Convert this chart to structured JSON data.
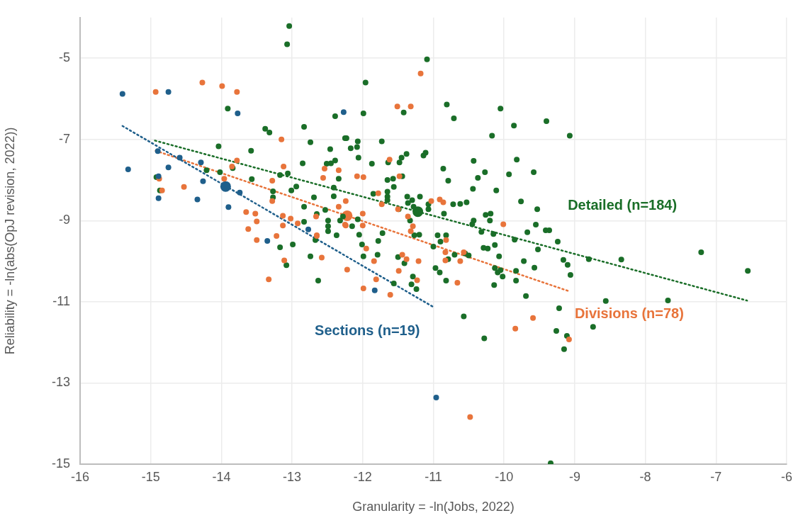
{
  "chart_data": {
    "type": "scatter",
    "xlabel": "Granularity = -ln(Jobs, 2022)",
    "ylabel": "Reliability = -ln(abs(OpJ revision, 2022))",
    "xlim": [
      -16,
      -6
    ],
    "xticks": [
      -16,
      -15,
      -14,
      -13,
      -12,
      -11,
      -10,
      -9,
      -8,
      -7,
      -6
    ],
    "ylim": [
      -15,
      -4
    ],
    "yticks": [
      -5,
      -7,
      -9,
      -11,
      -13,
      -15
    ],
    "grid": true,
    "legend": false,
    "marker": "circle",
    "series": [
      {
        "type": "scatter",
        "name": "Sections (n=19)",
        "color": "#1f5f8b",
        "x": [
          -15.4,
          -15.32,
          -14.75,
          -13.77,
          -12.27,
          -14.9,
          -14.59,
          -14.29,
          -14.75,
          -14.89,
          -14.26,
          -13.74,
          -14.89,
          -14.34,
          -13.9,
          -12.77,
          -13.35,
          -11.83,
          -10.96
        ],
        "values": [
          -5.88,
          -7.74,
          -5.83,
          -6.36,
          -6.33,
          -7.29,
          -7.45,
          -7.57,
          -7.69,
          -7.91,
          -8.03,
          -8.31,
          -8.45,
          -8.48,
          -8.67,
          -9.22,
          -9.5,
          -10.72,
          -13.36
        ]
      },
      {
        "type": "scatter",
        "name": "Divisions (n=78)",
        "color": "#e8743b",
        "x": [
          -14.93,
          -14.27,
          -13.99,
          -13.78,
          -13.15,
          -13.78,
          -13.85,
          -14.88,
          -14.84,
          -14.53,
          -13.96,
          -13.12,
          -13.28,
          -13.28,
          -13.65,
          -13.52,
          -13.5,
          -13.62,
          -13.13,
          -13.02,
          -13.13,
          -12.92,
          -12.66,
          -12.65,
          -12.54,
          -12.56,
          -12.34,
          -12.34,
          -12.25,
          -13.5,
          -13.22,
          -12.65,
          -13.11,
          -12.58,
          -13.33,
          -11.18,
          -11.51,
          -11.32,
          -11.62,
          -12.08,
          -11.99,
          -11.78,
          -11.73,
          -12.24,
          -12.0,
          -12.0,
          -12.24,
          -11.5,
          -11.36,
          -11.03,
          -10.91,
          -10.86,
          -11.29,
          -11.32,
          -11.48,
          -10.01,
          -11.95,
          -12.22,
          -11.84,
          -11.44,
          -11.38,
          -11.21,
          -11.49,
          -11.81,
          -11.23,
          -11.99,
          -11.61,
          -10.82,
          -10.83,
          -10.83,
          -10.62,
          -10.66,
          -10.57,
          -9.84,
          -9.59,
          -9.08,
          -10.48
        ],
        "values": [
          -5.83,
          -5.6,
          -5.69,
          -5.83,
          -7.0,
          -7.52,
          -7.67,
          -7.97,
          -8.26,
          -8.17,
          -7.97,
          -7.67,
          -8.02,
          -8.52,
          -8.79,
          -8.83,
          -9.02,
          -9.21,
          -8.88,
          -8.95,
          -9.12,
          -9.07,
          -8.9,
          -9.36,
          -7.72,
          -7.95,
          -7.76,
          -8.66,
          -9.1,
          -9.48,
          -9.38,
          -9.38,
          -9.98,
          -9.91,
          -10.45,
          -5.38,
          -6.19,
          -6.19,
          -7.5,
          -7.91,
          -7.93,
          -8.33,
          -8.6,
          -8.52,
          -8.83,
          -9.12,
          -9.12,
          -8.72,
          -8.9,
          -8.52,
          -8.48,
          -8.55,
          -9.14,
          -9.26,
          -7.91,
          -9.09,
          -9.69,
          -10.21,
          -10.0,
          -9.84,
          -9.95,
          -10.0,
          -10.24,
          -10.45,
          -10.47,
          -10.67,
          -10.83,
          -9.48,
          -9.78,
          -9.98,
          -10.0,
          -10.53,
          -9.78,
          -11.66,
          -11.4,
          -11.93,
          -13.84
        ]
      },
      {
        "type": "scatter",
        "name": "Detailed (n=184)",
        "color": "#1a6e28",
        "x": [
          -13.04,
          -13.07,
          -13.91,
          -13.38,
          -13.32,
          -12.83,
          -12.74,
          -12.39,
          -12.46,
          -12.25,
          -14.04,
          -13.58,
          -12.85,
          -12.51,
          -12.45,
          -12.39,
          -14.21,
          -14.02,
          -13.84,
          -14.92,
          -14.87,
          -13.57,
          -13.17,
          -13.06,
          -12.34,
          -12.41,
          -12.94,
          -13.01,
          -13.27,
          -13.27,
          -12.69,
          -12.41,
          -12.83,
          -12.53,
          -12.65,
          -12.28,
          -12.32,
          -12.49,
          -12.49,
          -12.49,
          -12.83,
          -12.37,
          -12.67,
          -13.17,
          -12.99,
          -12.74,
          -13.08,
          -12.63,
          -11.09,
          -11.96,
          -11.99,
          -11.42,
          -10.81,
          -10.71,
          -10.05,
          -9.86,
          -9.4,
          -10.17,
          -9.07,
          -12.23,
          -12.07,
          -12.17,
          -12.08,
          -11.73,
          -12.06,
          -11.87,
          -11.64,
          -11.45,
          -11.48,
          -11.38,
          -11.14,
          -11.11,
          -10.43,
          -10.27,
          -10.37,
          -10.86,
          -10.79,
          -9.82,
          -9.93,
          -9.58,
          -11.65,
          -11.57,
          -11.44,
          -11.56,
          -11.65,
          -11.85,
          -10.44,
          -10.11,
          -9.76,
          -9.53,
          -11.65,
          -11.65,
          -11.37,
          -11.3,
          -11.19,
          -11.36,
          -11.28,
          -11.07,
          -11.07,
          -11.49,
          -10.72,
          -10.62,
          -10.53,
          -10.85,
          -11.33,
          -10.26,
          -10.19,
          -10.2,
          -10.43,
          -10.45,
          -9.55,
          -9.67,
          -9.41,
          -9.36,
          -10.32,
          -10.15,
          -12.07,
          -12.15,
          -11.72,
          -12.05,
          -11.2,
          -11.27,
          -10.94,
          -10.82,
          -12.01,
          -11.99,
          -11.78,
          -11.79,
          -11.5,
          -11.41,
          -11.56,
          -11.29,
          -11.31,
          -11.24,
          -11.0,
          -10.9,
          -10.79,
          -10.7,
          -10.97,
          -10.91,
          -10.82,
          -10.55,
          -10.5,
          -10.57,
          -10.28,
          -10.29,
          -10.23,
          -10.13,
          -10.07,
          -10.13,
          -10.09,
          -10.05,
          -10.02,
          -10.14,
          -9.85,
          -9.83,
          -9.83,
          -9.72,
          -9.57,
          -9.69,
          -9.52,
          -9.24,
          -9.16,
          -9.1,
          -9.06,
          -9.22,
          -9.26,
          -9.11,
          -9.15,
          -8.8,
          -8.74,
          -9.34,
          -8.56,
          -8.34,
          -7.21,
          -6.55,
          -7.68
        ],
        "values": [
          -4.21,
          -4.66,
          -6.24,
          -6.74,
          -6.83,
          -6.69,
          -7.07,
          -6.43,
          -7.24,
          -6.97,
          -7.17,
          -7.28,
          -7.59,
          -7.6,
          -7.59,
          -7.52,
          -7.76,
          -7.81,
          -7.71,
          -7.93,
          -8.26,
          -7.98,
          -7.88,
          -7.84,
          -7.97,
          -8.19,
          -8.16,
          -8.26,
          -8.28,
          -8.43,
          -8.43,
          -8.4,
          -8.66,
          -8.74,
          -8.84,
          -8.9,
          -9.0,
          -9.0,
          -9.14,
          -9.26,
          -9.03,
          -9.36,
          -9.48,
          -9.66,
          -9.59,
          -9.88,
          -10.1,
          -10.48,
          -5.03,
          -5.6,
          -6.36,
          -6.34,
          -6.14,
          -6.48,
          -6.24,
          -6.66,
          -6.55,
          -6.91,
          -6.91,
          -6.97,
          -7.05,
          -7.22,
          -7.19,
          -7.05,
          -7.45,
          -7.6,
          -7.57,
          -7.45,
          -7.57,
          -7.36,
          -7.4,
          -7.33,
          -7.53,
          -7.81,
          -7.95,
          -7.72,
          -8.02,
          -7.5,
          -7.86,
          -7.81,
          -8.0,
          -7.97,
          -7.91,
          -8.17,
          -8.29,
          -8.34,
          -8.22,
          -8.26,
          -8.53,
          -8.72,
          -8.41,
          -8.5,
          -8.41,
          -8.5,
          -8.41,
          -8.57,
          -8.66,
          -8.6,
          -8.72,
          -8.72,
          -8.6,
          -8.59,
          -8.55,
          -8.83,
          -9.0,
          -8.86,
          -8.83,
          -9.0,
          -9.0,
          -9.09,
          -9.1,
          -9.29,
          -9.24,
          -9.24,
          -9.28,
          -9.33,
          -8.97,
          -9.14,
          -9.31,
          -9.35,
          -9.35,
          -9.36,
          -9.36,
          -9.36,
          -9.59,
          -9.88,
          -9.5,
          -9.84,
          -9.9,
          -10.05,
          -10.55,
          -10.38,
          -10.57,
          -10.69,
          -9.64,
          -9.52,
          -9.95,
          -9.84,
          -10.17,
          -10.28,
          -10.48,
          -9.81,
          -9.86,
          -11.36,
          -11.9,
          -9.67,
          -9.69,
          -9.6,
          -9.88,
          -10.17,
          -10.28,
          -10.22,
          -10.38,
          -10.59,
          -9.47,
          -10.24,
          -10.48,
          -10.0,
          -10.16,
          -10.86,
          -9.71,
          -9.52,
          -9.97,
          -10.09,
          -10.34,
          -11.16,
          -11.72,
          -11.84,
          -12.17,
          -9.95,
          -11.62,
          -14.98,
          -10.98,
          -9.96,
          -9.78,
          -10.24,
          -10.97
        ]
      },
      {
        "type": "line",
        "color": "#1f5f8b",
        "line_style": "dotted",
        "marker": "none",
        "x": [
          -15.4,
          -10.99
        ],
        "values": [
          -6.67,
          -11.14
        ]
      },
      {
        "type": "line",
        "color": "#e8743b",
        "line_style": "dotted",
        "marker": "none",
        "x": [
          -14.93,
          -9.08
        ],
        "values": [
          -7.28,
          -10.74
        ]
      },
      {
        "type": "line",
        "color": "#1a6e28",
        "line_style": "dotted",
        "marker": "none",
        "x": [
          -14.94,
          -6.56
        ],
        "values": [
          -7.03,
          -10.97
        ]
      },
      {
        "type": "scatter",
        "color": "#1f5f8b",
        "x": [
          -13.94
        ],
        "values": [
          -8.16
        ]
      },
      {
        "type": "scatter",
        "color": "#e8743b",
        "x": [
          -12.22
        ],
        "values": [
          -8.88
        ]
      },
      {
        "type": "scatter",
        "color": "#1a6e28",
        "x": [
          -11.22
        ],
        "values": [
          -8.78
        ]
      }
    ]
  }
}
